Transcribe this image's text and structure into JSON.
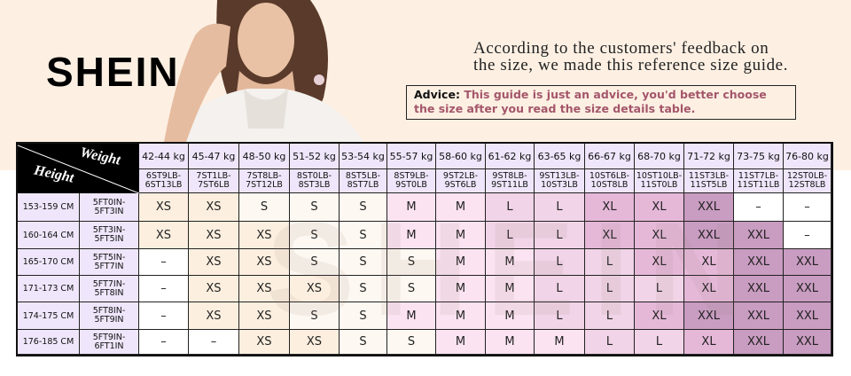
{
  "brand": {
    "logo": "SHEIN",
    "watermark": "SHEIN"
  },
  "intro": {
    "line1": "According to the customers' feedback on",
    "line2": "the size, we made this reference size guide."
  },
  "advice": {
    "label": "Advice:",
    "text_line1": "This guide is just an advice, you'd better choose",
    "text_line2": "the size after you read the size details table."
  },
  "table": {
    "corner_weight": "Weight",
    "corner_height": "Height",
    "weights_kg": [
      "42-44 kg",
      "45-47 kg",
      "48-50 kg",
      "51-52 kg",
      "53-54 kg",
      "55-57 kg",
      "58-60 kg",
      "61-62 kg",
      "63-65 kg",
      "66-67 kg",
      "68-70 kg",
      "71-72 kg",
      "73-75 kg",
      "76-80 kg"
    ],
    "weights_st": [
      [
        "6ST9LB-",
        "6ST13LB"
      ],
      [
        "7ST1LB-",
        "7ST6LB"
      ],
      [
        "7ST8LB-",
        "7ST12LB"
      ],
      [
        "8ST0LB-",
        "8ST3LB"
      ],
      [
        "8ST5LB-",
        "8ST7LB"
      ],
      [
        "8ST9LB-",
        "9ST0LB"
      ],
      [
        "9ST2LB-",
        "9ST6LB"
      ],
      [
        "9ST8LB-",
        "9ST11LB"
      ],
      [
        "9ST13LB-",
        "10ST3LB"
      ],
      [
        "10ST6LB-",
        "10ST8LB"
      ],
      [
        "10ST10LB-",
        "11ST0LB"
      ],
      [
        "11ST3LB-",
        "11ST5LB"
      ],
      [
        "11ST7LB-",
        "11ST11LB"
      ],
      [
        "12ST0LB-",
        "12ST8LB"
      ]
    ],
    "rows": [
      {
        "cm": "153-159 CM",
        "ft": [
          "5FT0IN-",
          "5FT3IN"
        ],
        "sizes": [
          "XS",
          "XS",
          "S",
          "S",
          "S",
          "M",
          "M",
          "L",
          "L",
          "XL",
          "XL",
          "XXL",
          "–",
          "–"
        ]
      },
      {
        "cm": "160-164 CM",
        "ft": [
          "5FT3IN-",
          "5FT5IN"
        ],
        "sizes": [
          "XS",
          "XS",
          "XS",
          "S",
          "S",
          "M",
          "M",
          "L",
          "L",
          "XL",
          "XL",
          "XXL",
          "XXL",
          "–"
        ]
      },
      {
        "cm": "165-170 CM",
        "ft": [
          "5FT5IN-",
          "5FT7IN"
        ],
        "sizes": [
          "–",
          "XS",
          "XS",
          "S",
          "S",
          "S",
          "M",
          "M",
          "L",
          "L",
          "XL",
          "XL",
          "XXL",
          "XXL"
        ]
      },
      {
        "cm": "171-173 CM",
        "ft": [
          "5FT7IN-",
          "5FT8IN"
        ],
        "sizes": [
          "–",
          "XS",
          "XS",
          "XS",
          "S",
          "S",
          "M",
          "M",
          "L",
          "L",
          "L",
          "XL",
          "XXL",
          "XXL"
        ]
      },
      {
        "cm": "174-175 CM",
        "ft": [
          "5FT8IN-",
          "5FT9IN"
        ],
        "sizes": [
          "–",
          "XS",
          "XS",
          "S",
          "S",
          "M",
          "M",
          "M",
          "L",
          "L",
          "XL",
          "XXL",
          "XXL",
          "XXL"
        ]
      },
      {
        "cm": "176-185 CM",
        "ft": [
          "5FT9IN-",
          "6FT1IN"
        ],
        "sizes": [
          "–",
          "–",
          "XS",
          "XS",
          "S",
          "S",
          "M",
          "M",
          "M",
          "L",
          "L",
          "XL",
          "XXL",
          "XXL"
        ]
      }
    ]
  },
  "colors": {
    "–": "#ffffff",
    "XS": "#fcefdf",
    "S": "#fdf8f1",
    "M": "#fbe3f1",
    "L": "#f1d4e7",
    "XL": "#e5b8d8",
    "XXL": "#c99cc1",
    "header": "#efe6fb",
    "advice_text": "#a4566a",
    "top_background": "#fdf0e3"
  }
}
